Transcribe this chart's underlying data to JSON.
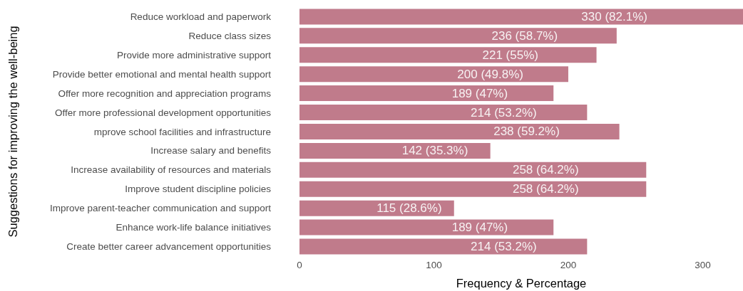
{
  "chart_data": {
    "type": "bar",
    "orientation": "horizontal",
    "xlabel": "Frequency & Percentage",
    "ylabel": "Suggestions for improving the well-being",
    "categories": [
      "Reduce workload and paperwork",
      "Reduce class sizes",
      "Provide more administrative support",
      "Provide better emotional and mental health support",
      "Offer more recognition and appreciation programs",
      "Offer more professional development opportunities",
      "mprove school facilities and infrastructure",
      "Increase salary and benefits",
      "Increase availability of resources and materials",
      "Improve student discipline policies",
      "Improve parent-teacher communication and support",
      "Enhance work-life balance initiatives",
      "Create better career advancement opportunities"
    ],
    "values": [
      330,
      236,
      221,
      200,
      189,
      214,
      238,
      142,
      258,
      258,
      115,
      189,
      214
    ],
    "value_labels": [
      "330 (82.1%)",
      "236 (58.7%)",
      "221 (55%)",
      "200 (49.8%)",
      "189 (47%)",
      "214 (53.2%)",
      "238 (59.2%)",
      "142 (35.3%)",
      "258 (64.2%)",
      "258 (64.2%)",
      "115 (28.6%)",
      "189 (47%)",
      "214 (53.2%)"
    ],
    "color": "#c07b8b",
    "xlim": [
      0,
      330
    ],
    "xticks": [
      0,
      100,
      200,
      300
    ]
  }
}
